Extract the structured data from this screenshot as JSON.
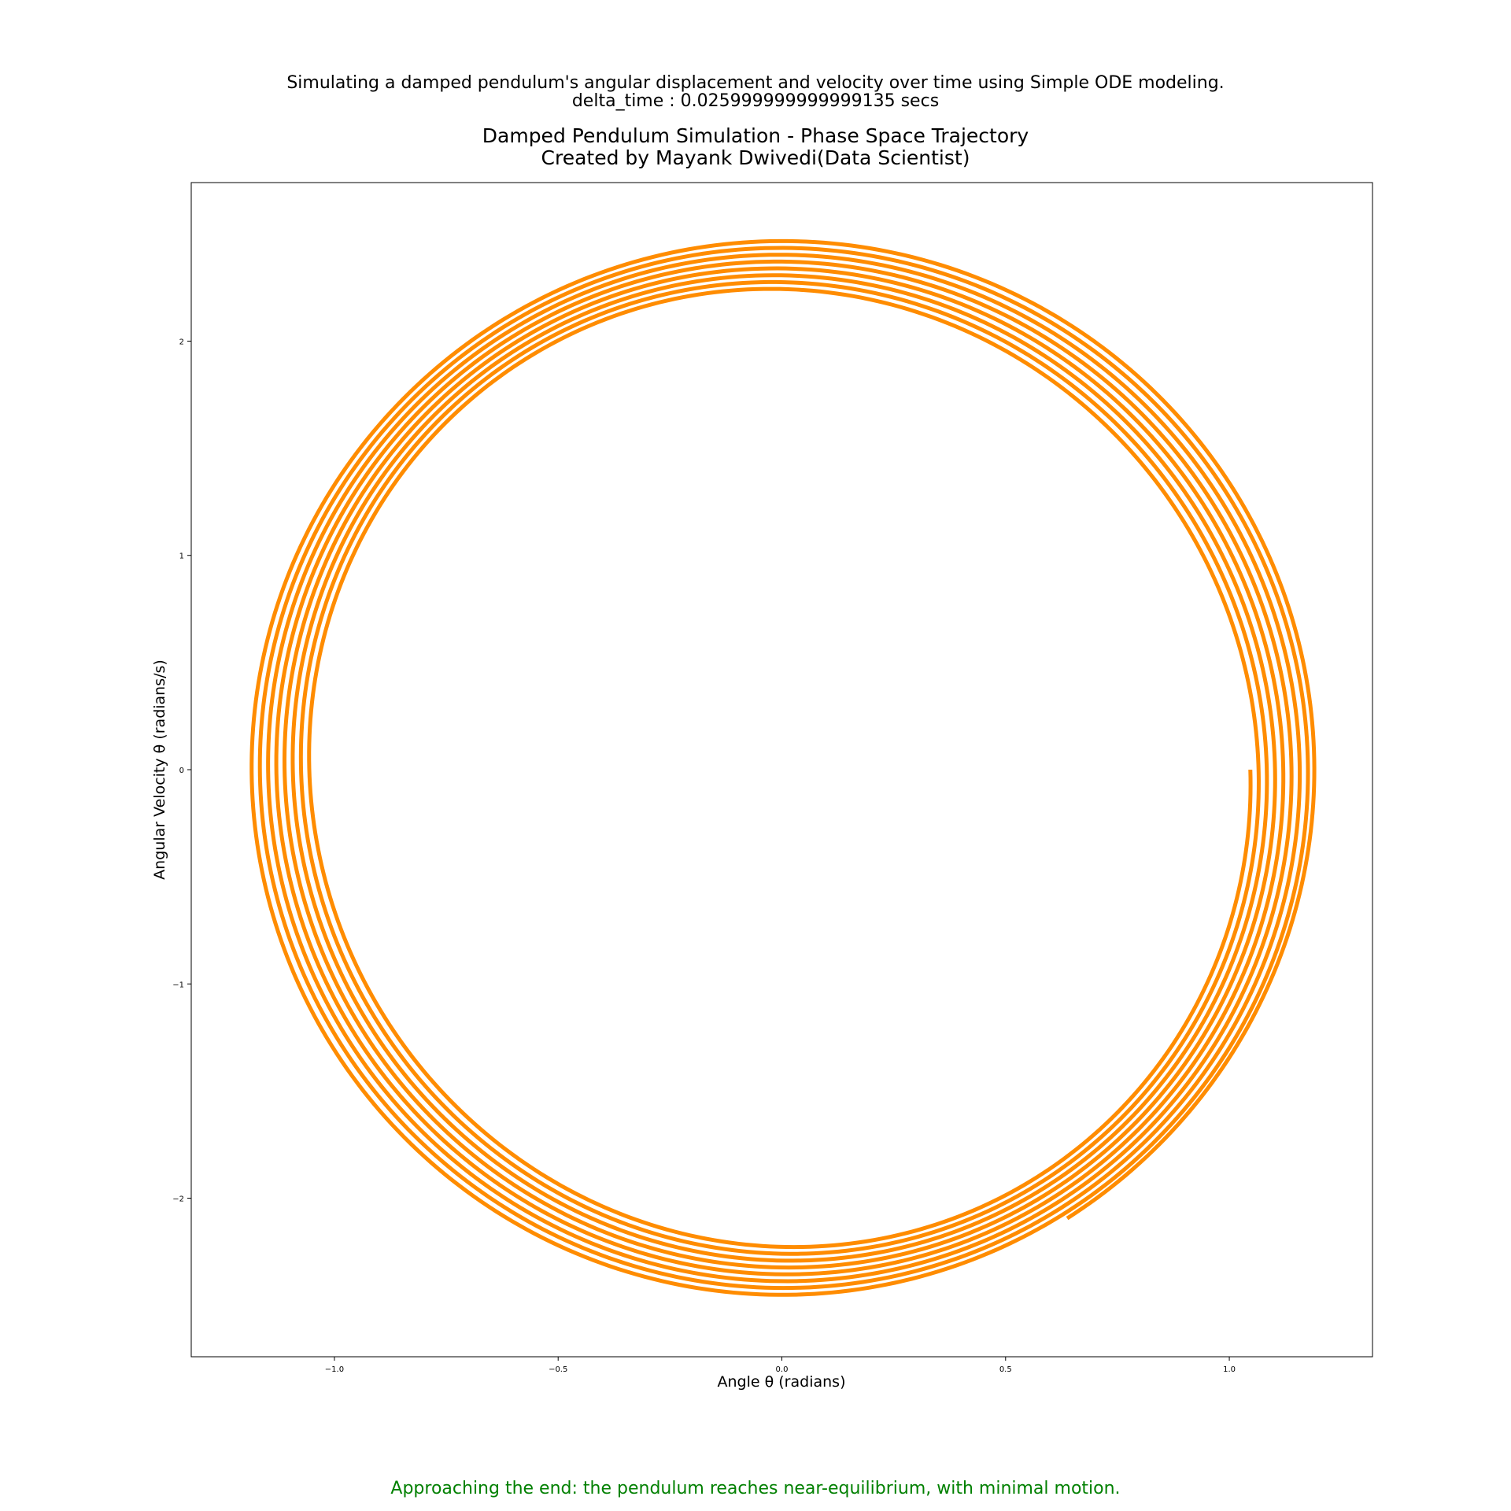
{
  "figure": {
    "suptitle_line1": "Simulating a damped pendulum's angular displacement and velocity over time using Simple ODE modeling.",
    "suptitle_line2": "delta_time : 0.025999999999999135 secs",
    "footer_text": "Approaching the end: the pendulum reaches near-equilibrium, with minimal motion.",
    "footer_color": "#008000"
  },
  "chart_data": {
    "type": "line",
    "title_line1": "Damped Pendulum Simulation - Phase Space Trajectory",
    "title_line2": "Created by Mayank Dwivedi(Data Scientist)",
    "xlabel": "Angle θ (radians)",
    "ylabel": "Angular Velocity θ (radians/s)",
    "xlim": [
      -1.32,
      1.32
    ],
    "ylim": [
      -2.74,
      2.74
    ],
    "x_ticks": [
      -1.0,
      -0.5,
      0.0,
      0.5,
      1.0
    ],
    "x_tick_labels": [
      "−1.0",
      "−0.5",
      "0.0",
      "0.5",
      "1.0"
    ],
    "y_ticks": [
      -2,
      -1,
      0,
      1,
      2
    ],
    "y_tick_labels": [
      "−2",
      "−1",
      "0",
      "1",
      "2"
    ],
    "grid": false,
    "line_color": "#ff8c00",
    "series": [
      {
        "trajectory": {
          "theta_start": 1.047,
          "theta_end": -0.2,
          "revolutions": 8,
          "amplitude_start": 1.047,
          "amplitude_peak": 1.19,
          "velocity_peak_start": 2.22,
          "velocity_peak_end": 2.48,
          "theta_end_wrap_fraction": 0.16
        }
      }
    ]
  }
}
